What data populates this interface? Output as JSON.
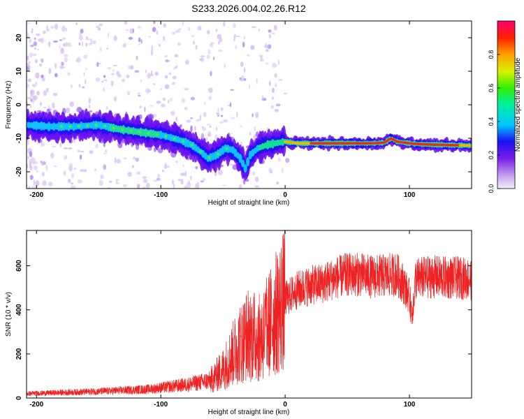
{
  "title": "S233.2026.004.02.26.R12",
  "chart_data": [
    {
      "type": "heatmap",
      "name": "spectrogram",
      "xlabel": "Height of straight line (km)",
      "ylabel": "Frequency (Hz)",
      "xlim": [
        -208,
        150
      ],
      "ylim": [
        -25,
        25
      ],
      "xticks": [
        -200,
        -100,
        0,
        100
      ],
      "yticks": [
        -20,
        -10,
        0,
        10,
        20
      ],
      "ridge": {
        "x": [
          -208,
          -190,
          -170,
          -150,
          -135,
          -120,
          -100,
          -85,
          -75,
          -68,
          -62,
          -55,
          -48,
          -42,
          -36,
          -32,
          -28,
          -22,
          -15,
          -8,
          0,
          10,
          30,
          50,
          70,
          80,
          85,
          90,
          100,
          110,
          130,
          150
        ],
        "y": [
          -6,
          -6.5,
          -6.5,
          -6,
          -7.2,
          -8,
          -9,
          -10.5,
          -12,
          -14,
          -16,
          -15,
          -13,
          -13.5,
          -16,
          -19,
          -15,
          -13,
          -12,
          -11.5,
          -11,
          -11.5,
          -11.5,
          -11.5,
          -11.5,
          -11.3,
          -10,
          -11,
          -11.5,
          -11.8,
          -12,
          -12.2
        ]
      },
      "colorbar": {
        "label": "Normalized spectral amplitude",
        "ticks": [
          0.0,
          0.2,
          0.4,
          0.6,
          0.8
        ],
        "range": [
          0,
          1
        ]
      }
    },
    {
      "type": "line",
      "name": "snr",
      "xlabel": "Height of straight line (km)",
      "ylabel": "SNR (10 * v/v)",
      "xlim": [
        -208,
        150
      ],
      "ylim": [
        0,
        760
      ],
      "xticks": [
        -200,
        -100,
        0,
        100
      ],
      "yticks": [
        0,
        200,
        400,
        600
      ],
      "color": "#ee2222",
      "envelope": {
        "x": [
          -208,
          -150,
          -110,
          -80,
          -60,
          -50,
          -40,
          -30,
          -20,
          -10,
          0,
          10,
          20,
          30,
          40,
          50,
          60,
          70,
          80,
          90,
          95,
          100,
          102,
          105,
          110,
          120,
          130,
          140,
          150
        ],
        "y": [
          20,
          30,
          40,
          60,
          80,
          130,
          220,
          290,
          270,
          360,
          450,
          490,
          510,
          520,
          545,
          560,
          560,
          550,
          555,
          560,
          520,
          460,
          380,
          540,
          545,
          550,
          545,
          545,
          540
        ]
      }
    }
  ]
}
